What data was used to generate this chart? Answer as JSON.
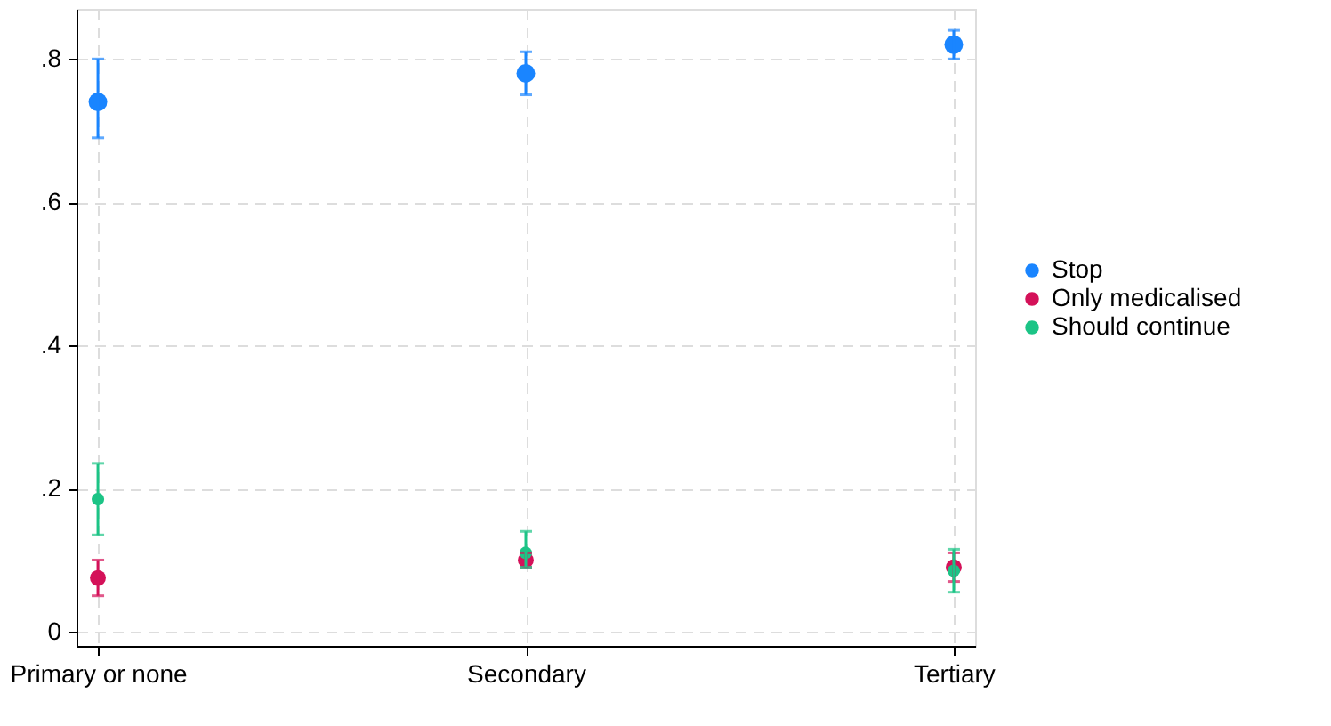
{
  "chart_data": {
    "type": "scatter",
    "categories": [
      "Primary or none",
      "Secondary",
      "Tertiary"
    ],
    "series": [
      {
        "name": "Stop",
        "color": "#1a85ff",
        "values": [
          0.74,
          0.78,
          0.82
        ],
        "errors": [
          [
            0.69,
            0.8
          ],
          [
            0.75,
            0.81
          ],
          [
            0.8,
            0.84
          ]
        ]
      },
      {
        "name": "Only medicalised",
        "color": "#d41159",
        "values": [
          0.075,
          0.1,
          0.09
        ],
        "errors": [
          [
            0.05,
            0.1
          ],
          [
            0.09,
            0.11
          ],
          [
            0.07,
            0.11
          ]
        ]
      },
      {
        "name": "Should continue",
        "color": "#1cc486",
        "values": [
          0.185,
          0.11,
          0.085
        ],
        "errors": [
          [
            0.135,
            0.235
          ],
          [
            0.09,
            0.14
          ],
          [
            0.055,
            0.115
          ]
        ]
      }
    ],
    "ylim": [
      -0.02,
      0.87
    ],
    "yticks": [
      {
        "value": 0,
        "label": "0"
      },
      {
        "value": 0.2,
        "label": ".2"
      },
      {
        "value": 0.4,
        "label": ".4"
      },
      {
        "value": 0.6,
        "label": ".6"
      },
      {
        "value": 0.8,
        "label": ".8"
      }
    ],
    "grid": true,
    "legend": "right",
    "marker": "circle"
  }
}
